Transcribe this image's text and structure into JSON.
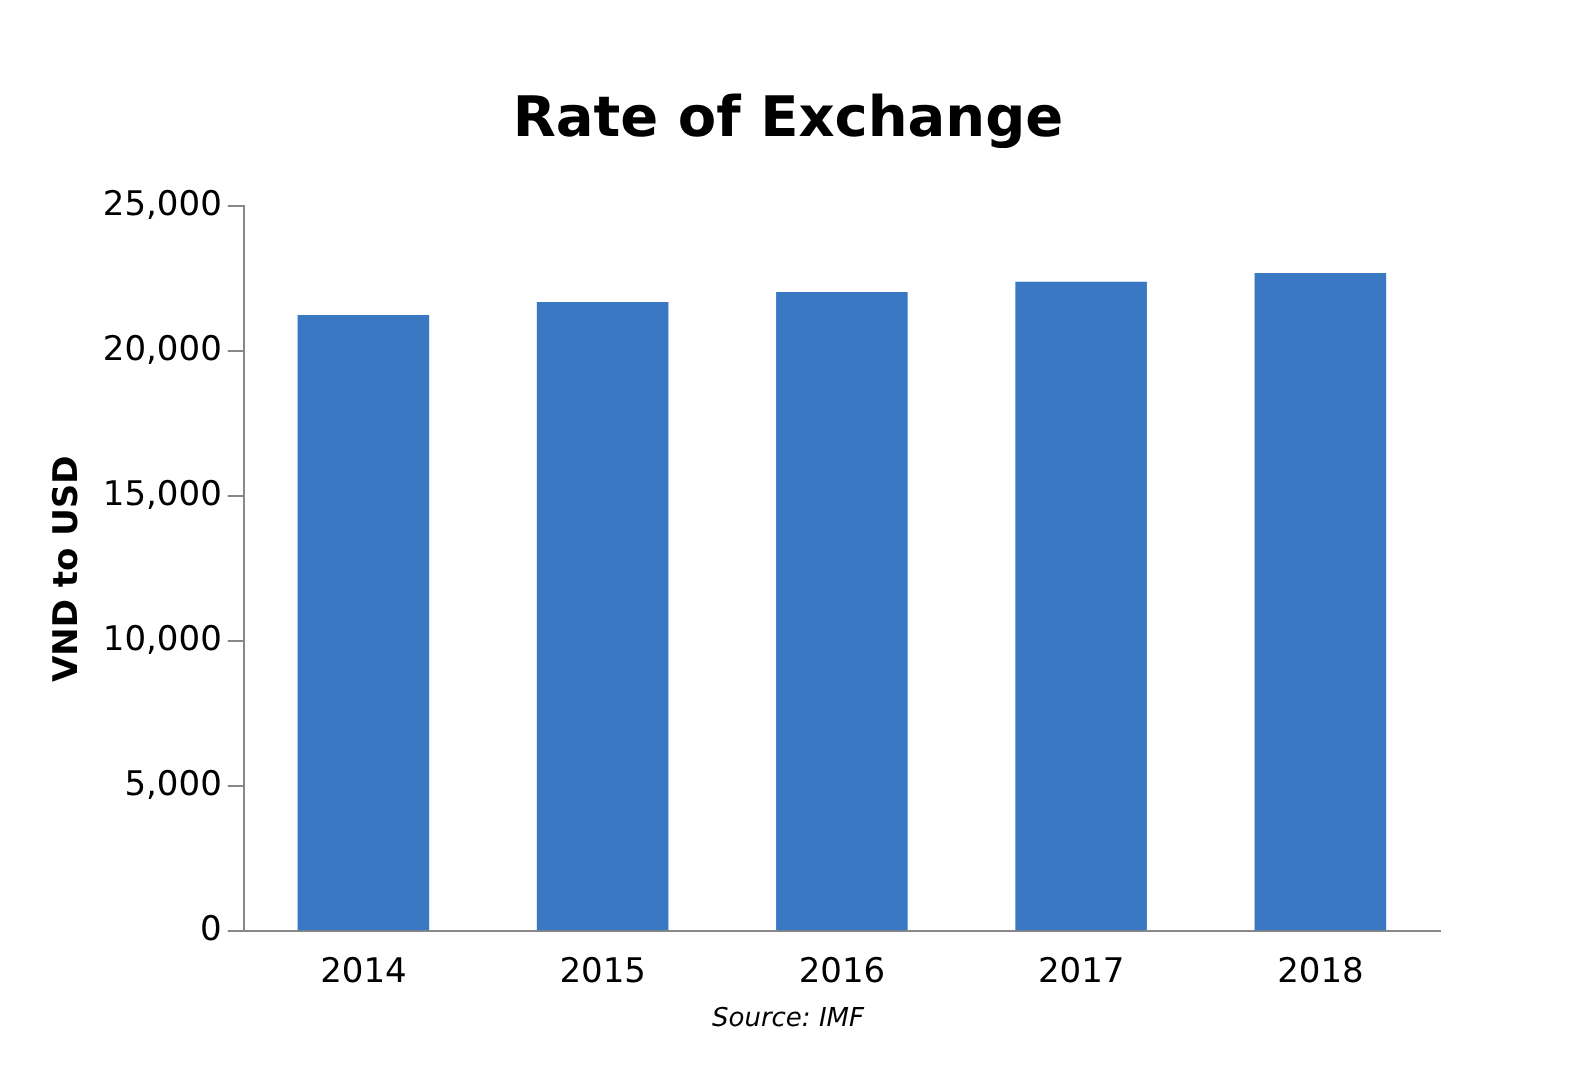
{
  "chart_data": {
    "type": "bar",
    "title": "Rate of Exchange",
    "ylabel": "VND to USD",
    "categories": [
      "2014",
      "2015",
      "2016",
      "2017",
      "2018"
    ],
    "values": [
      21250,
      21700,
      22050,
      22400,
      22700
    ],
    "color": "#3a78c4",
    "ylim": [
      0,
      25000
    ],
    "yticks": [
      {
        "value": 0,
        "label": "0"
      },
      {
        "value": 5000,
        "label": "5,000"
      },
      {
        "value": 10000,
        "label": "10,000"
      },
      {
        "value": 15000,
        "label": "15,000"
      },
      {
        "value": 20000,
        "label": "20,000"
      },
      {
        "value": 25000,
        "label": "25,000"
      }
    ],
    "grid": false,
    "legend": false,
    "annotations": [
      "Source: IMF"
    ]
  }
}
